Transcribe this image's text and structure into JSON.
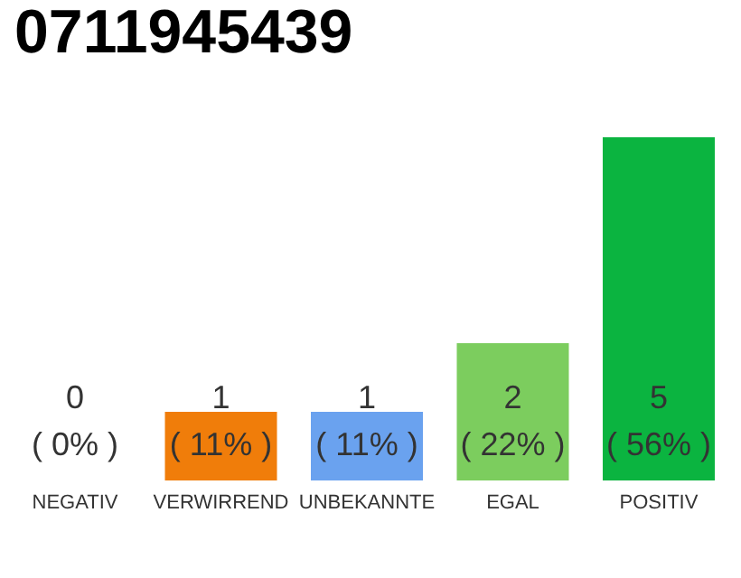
{
  "chart_data": {
    "type": "bar",
    "title": "0711945439",
    "categories": [
      "NEGATIV",
      "VERWIRREND",
      "UNBEKANNTE",
      "EGAL",
      "POSITIV"
    ],
    "values": [
      0,
      1,
      1,
      2,
      5
    ],
    "colors": [
      "#999999",
      "#f07d0a",
      "#6aa2ef",
      "#7ccd5e",
      "#0bb440"
    ],
    "value_labels": [
      "0\n( 0% )",
      "1\n( 11% )",
      "1\n( 11% )",
      "2\n( 22% )",
      "5\n( 56% )"
    ],
    "tick_labels": "x",
    "grid": false
  }
}
